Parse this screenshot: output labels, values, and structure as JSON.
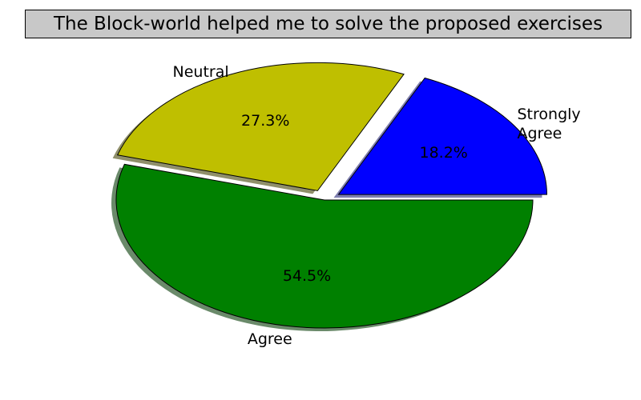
{
  "chart_data": {
    "type": "pie",
    "title": "The Block-world helped me to solve the proposed exercises",
    "slices": [
      {
        "label": "Strongly Agree",
        "label_lines": [
          "Strongly",
          "Agree"
        ],
        "value": 18.2,
        "pct_label": "18.2%",
        "color": "#0000ff",
        "shadow_color": "#7f7fb0",
        "explode": true
      },
      {
        "label": "Neutral",
        "label_lines": [
          "Neutral"
        ],
        "value": 27.3,
        "pct_label": "27.3%",
        "color": "#bfbf00",
        "shadow_color": "#8f8f6a",
        "explode": true
      },
      {
        "label": "Agree",
        "label_lines": [
          "Agree"
        ],
        "value": 54.5,
        "pct_label": "54.5%",
        "color": "#008000",
        "shadow_color": "#6a8a6a",
        "explode": false
      }
    ],
    "start_angle_deg": 0,
    "counterclockwise": true,
    "shadow": true
  }
}
